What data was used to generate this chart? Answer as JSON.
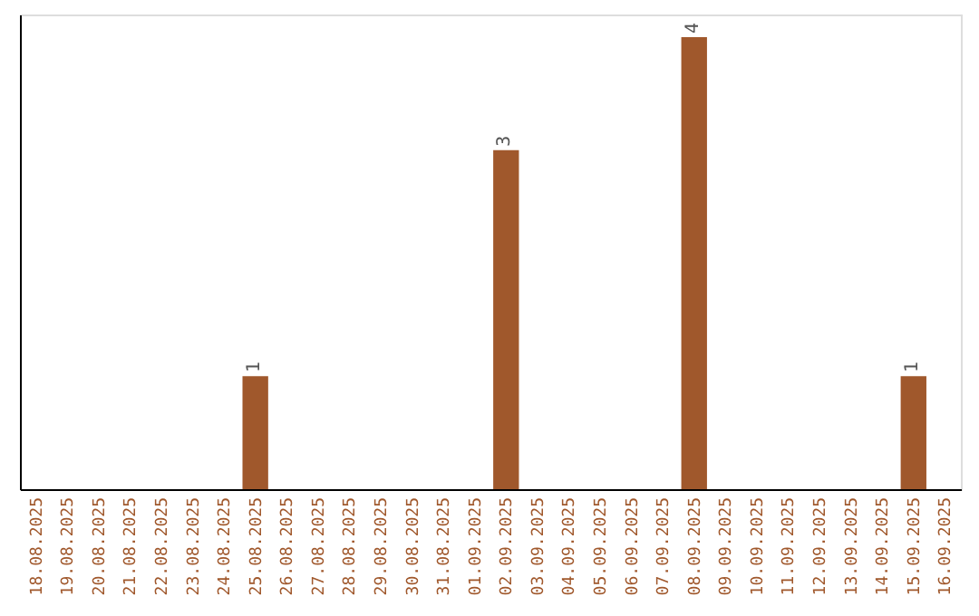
{
  "chart_data": {
    "type": "bar",
    "categories": [
      "18.08.2025",
      "19.08.2025",
      "20.08.2025",
      "21.08.2025",
      "22.08.2025",
      "23.08.2025",
      "24.08.2025",
      "25.08.2025",
      "26.08.2025",
      "27.08.2025",
      "28.08.2025",
      "29.08.2025",
      "30.08.2025",
      "31.08.2025",
      "01.09.2025",
      "02.09.2025",
      "03.09.2025",
      "04.09.2025",
      "05.09.2025",
      "06.09.2025",
      "07.09.2025",
      "08.09.2025",
      "09.09.2025",
      "10.09.2025",
      "11.09.2025",
      "12.09.2025",
      "13.09.2025",
      "14.09.2025",
      "15.09.2025",
      "16.09.2025"
    ],
    "values": [
      0,
      0,
      0,
      0,
      0,
      0,
      0,
      1,
      0,
      0,
      0,
      0,
      0,
      0,
      0,
      3,
      0,
      0,
      0,
      0,
      0,
      4,
      0,
      0,
      0,
      0,
      0,
      0,
      1,
      0
    ],
    "value_labels": [
      null,
      null,
      null,
      null,
      null,
      null,
      null,
      "1",
      null,
      null,
      null,
      null,
      null,
      null,
      null,
      "3",
      null,
      null,
      null,
      null,
      null,
      "4",
      null,
      null,
      null,
      null,
      null,
      null,
      "1",
      null
    ],
    "color": "#a0582c",
    "grid": false,
    "tick_labels": "x"
  }
}
